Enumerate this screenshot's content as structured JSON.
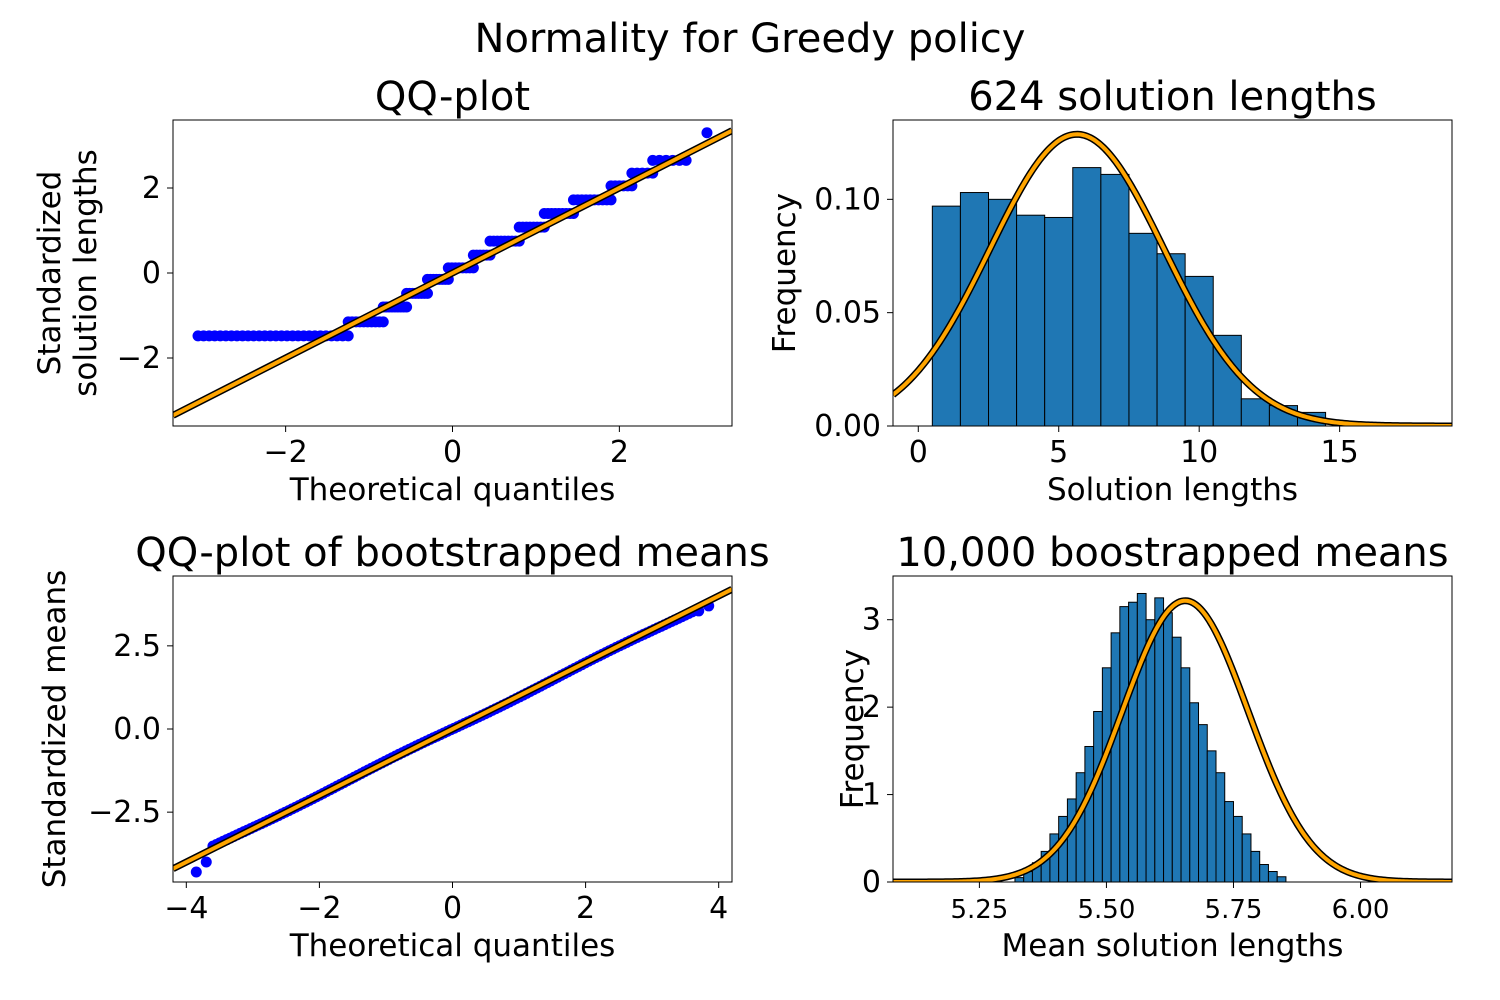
{
  "figure_title": "Normality for Greedy policy",
  "colors": {
    "bar": "#1f77b4",
    "fit": "#ffa500",
    "outline": "#000000",
    "points": "#0000ff"
  },
  "chart_data": [
    {
      "id": "qq1",
      "type": "scatter",
      "title": "QQ-plot",
      "xlabel": "Theoretical quantiles",
      "ylabel": [
        "Standardized",
        "solution lengths"
      ],
      "xlim": [
        -3.35,
        3.35
      ],
      "ylim": [
        -3.6,
        3.6
      ],
      "xticks": [
        -2,
        0,
        2
      ],
      "yticks": [
        -2,
        0,
        2
      ],
      "line": {
        "slope": 1,
        "intercept": 0
      },
      "steps": [
        {
          "y": -1.48,
          "x0": -3.05,
          "x1": -1.25,
          "n": 28
        },
        {
          "y": -1.15,
          "x0": -1.25,
          "x1": -0.83,
          "n": 10
        },
        {
          "y": -0.8,
          "x0": -0.83,
          "x1": -0.55,
          "n": 9
        },
        {
          "y": -0.48,
          "x0": -0.55,
          "x1": -0.3,
          "n": 8
        },
        {
          "y": -0.15,
          "x0": -0.3,
          "x1": -0.05,
          "n": 8
        },
        {
          "y": 0.12,
          "x0": -0.05,
          "x1": 0.25,
          "n": 8
        },
        {
          "y": 0.42,
          "x0": 0.25,
          "x1": 0.45,
          "n": 6
        },
        {
          "y": 0.75,
          "x0": 0.45,
          "x1": 0.8,
          "n": 9
        },
        {
          "y": 1.08,
          "x0": 0.8,
          "x1": 1.1,
          "n": 8
        },
        {
          "y": 1.4,
          "x0": 1.1,
          "x1": 1.45,
          "n": 9
        },
        {
          "y": 1.72,
          "x0": 1.45,
          "x1": 1.9,
          "n": 10
        },
        {
          "y": 2.05,
          "x0": 1.9,
          "x1": 2.15,
          "n": 6
        },
        {
          "y": 2.35,
          "x0": 2.15,
          "x1": 2.4,
          "n": 5
        },
        {
          "y": 2.65,
          "x0": 2.4,
          "x1": 2.8,
          "n": 6
        },
        {
          "y": 3.3,
          "x0": 3.05,
          "x1": 3.05,
          "n": 1
        }
      ]
    },
    {
      "id": "hist1",
      "type": "bar",
      "title": "624 solution lengths",
      "xlabel": "Solution lengths",
      "ylabel": [
        "Frequency"
      ],
      "xlim": [
        -0.9,
        19
      ],
      "ylim": [
        0,
        0.135
      ],
      "xticks": [
        0,
        5,
        10,
        15
      ],
      "yticks": [
        0.0,
        0.05,
        0.1
      ],
      "ytick_labels": [
        "0.00",
        "0.05",
        "0.10"
      ],
      "bin_edges": [
        0.5,
        1.5,
        2.5,
        3.5,
        4.5,
        5.5,
        6.5,
        7.5,
        8.5,
        9.5,
        10.5,
        11.5,
        12.5,
        13.5,
        14.5
      ],
      "values": [
        0.097,
        0.103,
        0.1,
        0.093,
        0.092,
        0.114,
        0.111,
        0.085,
        0.076,
        0.066,
        0.04,
        0.012,
        0.009,
        0.006
      ],
      "fit": {
        "mean": 5.65,
        "sd": 3.1
      }
    },
    {
      "id": "qq2",
      "type": "scatter",
      "title": "QQ-plot of bootstrapped means",
      "xlabel": "Theoretical quantiles",
      "ylabel": [
        "Standardized means"
      ],
      "xlim": [
        -4.2,
        4.2
      ],
      "ylim": [
        -4.6,
        4.6
      ],
      "xticks": [
        -4,
        -2,
        0,
        2,
        4
      ],
      "yticks": [
        -2.5,
        0.0,
        2.5
      ],
      "ytick_labels": [
        "−2.5",
        "0.0",
        "2.5"
      ],
      "line": {
        "slope": 1,
        "intercept": 0
      },
      "points": {
        "x_from": -3.6,
        "x_to": 3.6,
        "n": 140,
        "extremes": [
          [
            -3.85,
            -4.3
          ],
          [
            -3.7,
            -4.0
          ],
          [
            3.7,
            3.55
          ],
          [
            3.85,
            3.7
          ]
        ]
      }
    },
    {
      "id": "hist2",
      "type": "bar",
      "title": "10,000 boostrapped means",
      "xlabel": "Mean solution lengths",
      "ylabel": [
        "Frequency"
      ],
      "xlim": [
        5.08,
        6.18
      ],
      "ylim": [
        0,
        3.5
      ],
      "xticks": [
        5.25,
        5.5,
        5.75,
        6.0
      ],
      "xtick_labels": [
        "5.25",
        "5.50",
        "5.75",
        "6.00"
      ],
      "yticks": [
        0,
        1,
        2,
        3
      ],
      "bin_start": 5.32,
      "bin_width": 0.0172,
      "values": [
        0.05,
        0.12,
        0.22,
        0.35,
        0.55,
        0.75,
        0.95,
        1.25,
        1.55,
        1.95,
        2.45,
        2.85,
        3.15,
        3.2,
        3.3,
        3.0,
        3.25,
        3.08,
        2.8,
        2.45,
        2.05,
        1.8,
        1.5,
        1.25,
        0.92,
        0.75,
        0.55,
        0.35,
        0.2,
        0.12,
        0.06
      ],
      "fit": {
        "mean": 5.655,
        "sd": 0.124
      }
    }
  ]
}
